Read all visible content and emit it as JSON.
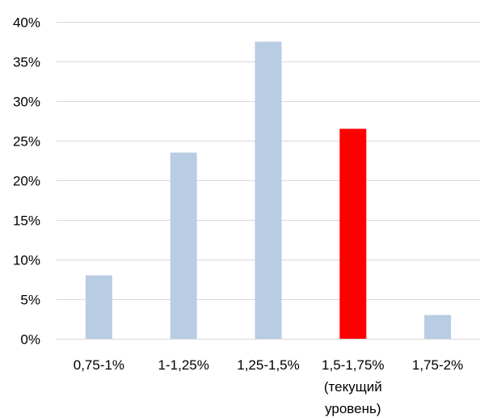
{
  "chart_data": {
    "type": "bar",
    "categories": [
      [
        "0,75-1%"
      ],
      [
        "1-1,25%"
      ],
      [
        "1,25-1,5%"
      ],
      [
        "1,5-1,75%",
        "(текущий",
        "уровень)"
      ],
      [
        "1,75-2%"
      ]
    ],
    "values": [
      8,
      23.5,
      37.5,
      26.5,
      3
    ],
    "highlight_index": 3,
    "colors": {
      "bar": "#b8cce4",
      "highlight": "#ff0000",
      "grid": "#d9d9d9",
      "axis": "#d9d9d9"
    },
    "ylim": [
      0,
      40
    ],
    "yticks": [
      0,
      5,
      10,
      15,
      20,
      25,
      30,
      35,
      40
    ],
    "ytick_labels": [
      "0%",
      "5%",
      "10%",
      "15%",
      "20%",
      "25%",
      "30%",
      "35%",
      "40%"
    ],
    "title": "",
    "xlabel": "",
    "ylabel": "",
    "grid": true
  }
}
